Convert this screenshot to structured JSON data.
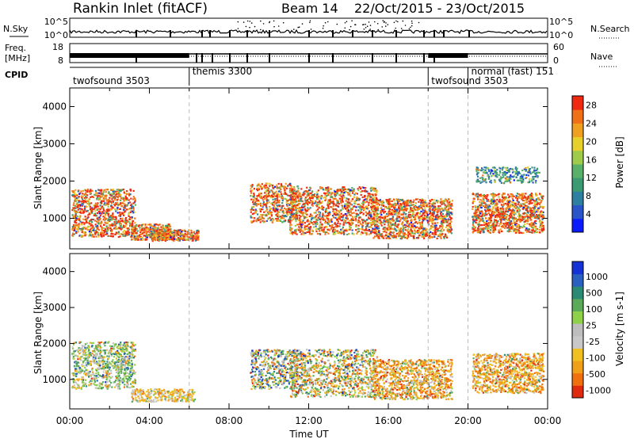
{
  "header": {
    "site": "Rankin Inlet (fitACF)",
    "beam": "Beam 14",
    "dates": "22/Oct/2015 - 23/Oct/2015"
  },
  "panels": {
    "nsky_label": "N.Sky",
    "nsearch_label": "N.Search",
    "freq_label_line1": "Freq.",
    "freq_label_line2": "[MHz]",
    "nave_label": "Nave",
    "cpid_label": "CPID",
    "nsky_ticks": [
      "10^5",
      "10^0"
    ],
    "nsearch_ticks": [
      "10^5",
      "10^0"
    ],
    "freq_ticks": [
      "18",
      "8"
    ],
    "nave_ticks": [
      "60",
      "0"
    ]
  },
  "cpid_modes": [
    {
      "name": "twofsound 3503",
      "start_hour": 0
    },
    {
      "name": "themis 3300",
      "start_hour": 6
    },
    {
      "name": "twofsound 3503",
      "start_hour": 18
    },
    {
      "name": "normal (fast) 151",
      "start_hour": 20
    }
  ],
  "colors": {
    "power": [
      "#0a1cff",
      "#2a55c8",
      "#2e7fa0",
      "#3b9a72",
      "#58b06a",
      "#9fcb4a",
      "#e8d02a",
      "#f0a020",
      "#f07018",
      "#f02a10"
    ],
    "velocity": [
      "#1432d6",
      "#2a60c0",
      "#2c8a74",
      "#5aaa5a",
      "#8ed04a",
      "#bdbdbd",
      "#c8c8c8",
      "#f0c020",
      "#f0a018",
      "#f07010",
      "#e02a10"
    ]
  },
  "chart_data": [
    {
      "type": "heatmap",
      "title": "Power",
      "ylabel": "Slant Range [km]",
      "xlabel": "Time UT",
      "x_ticks": [
        "00:00",
        "04:00",
        "08:00",
        "12:00",
        "16:00",
        "20:00",
        "00:00"
      ],
      "y_ticks": [
        "1000",
        "2000",
        "3000",
        "4000"
      ],
      "ylim": [
        180,
        4500
      ],
      "xlim_hours": [
        0,
        24
      ],
      "colorbar_label": "Power [dB]",
      "colorbar_ticks": [
        "4",
        "8",
        "12",
        "16",
        "20",
        "24",
        "28"
      ],
      "colorbar_range": [
        0,
        30
      ]
    },
    {
      "type": "heatmap",
      "title": "Velocity",
      "ylabel": "Slant Range [km]",
      "xlabel": "Time UT",
      "x_ticks": [
        "00:00",
        "04:00",
        "08:00",
        "12:00",
        "16:00",
        "20:00",
        "00:00"
      ],
      "y_ticks": [
        "1000",
        "2000",
        "3000",
        "4000"
      ],
      "ylim": [
        180,
        4500
      ],
      "xlim_hours": [
        0,
        24
      ],
      "colorbar_label": "Velocity [m s-1]",
      "colorbar_ticks": [
        "1000",
        "500",
        "100",
        "25",
        "-25",
        "-100",
        "-500",
        "-1000"
      ]
    }
  ],
  "axis": {
    "time_label": "Time UT"
  }
}
